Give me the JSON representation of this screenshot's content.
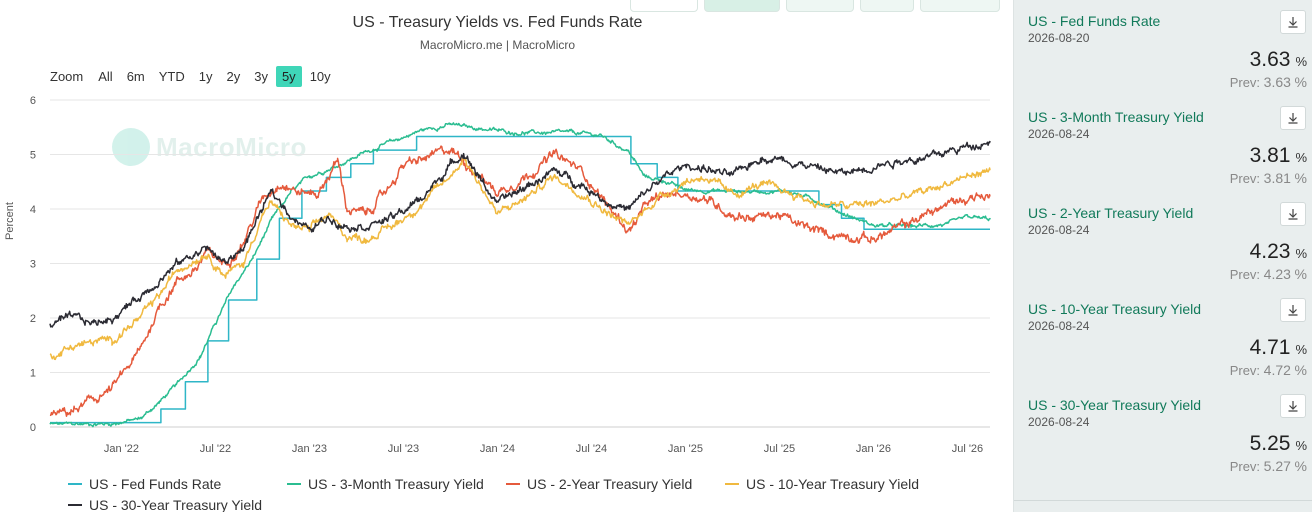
{
  "chart_data": {
    "type": "line",
    "title": "US - Treasury Yields vs. Fed Funds Rate",
    "subtitle": "MacroMicro.me | MacroMicro",
    "ylabel": "Percent",
    "xlabel": "",
    "ylim": [
      0,
      6
    ],
    "yticks": [
      0,
      1,
      2,
      3,
      4,
      5,
      6
    ],
    "xlim": [
      2021.62,
      2026.62
    ],
    "xticks": [
      {
        "label": "Jan '22",
        "x": 2022.0
      },
      {
        "label": "Jul '22",
        "x": 2022.5
      },
      {
        "label": "Jan '23",
        "x": 2023.0
      },
      {
        "label": "Jul '23",
        "x": 2023.5
      },
      {
        "label": "Jan '24",
        "x": 2024.0
      },
      {
        "label": "Jul '24",
        "x": 2024.5
      },
      {
        "label": "Jan '25",
        "x": 2025.0
      },
      {
        "label": "Jul '25",
        "x": 2025.5
      },
      {
        "label": "Jan '26",
        "x": 2026.0
      },
      {
        "label": "Jul '26",
        "x": 2026.5
      }
    ],
    "grid": true,
    "legend_position": "bottom",
    "zoom": {
      "label": "Zoom",
      "options": [
        "All",
        "6m",
        "YTD",
        "1y",
        "2y",
        "3y",
        "5y",
        "10y"
      ],
      "active": "5y"
    },
    "watermark": "MacroMicro",
    "series": [
      {
        "name": "US - Fed Funds Rate",
        "color": "#2eb6c7",
        "step": true,
        "points": [
          [
            2021.62,
            0.08
          ],
          [
            2022.21,
            0.08
          ],
          [
            2022.21,
            0.33
          ],
          [
            2022.34,
            0.33
          ],
          [
            2022.34,
            0.83
          ],
          [
            2022.46,
            0.83
          ],
          [
            2022.46,
            1.58
          ],
          [
            2022.57,
            1.58
          ],
          [
            2022.57,
            2.33
          ],
          [
            2022.72,
            2.33
          ],
          [
            2022.72,
            3.08
          ],
          [
            2022.84,
            3.08
          ],
          [
            2022.84,
            3.83
          ],
          [
            2022.96,
            3.83
          ],
          [
            2022.96,
            4.33
          ],
          [
            2023.09,
            4.33
          ],
          [
            2023.09,
            4.58
          ],
          [
            2023.22,
            4.58
          ],
          [
            2023.22,
            4.83
          ],
          [
            2023.34,
            4.83
          ],
          [
            2023.34,
            5.08
          ],
          [
            2023.57,
            5.08
          ],
          [
            2023.57,
            5.33
          ],
          [
            2024.71,
            5.33
          ],
          [
            2024.71,
            4.83
          ],
          [
            2024.85,
            4.83
          ],
          [
            2024.85,
            4.58
          ],
          [
            2024.96,
            4.58
          ],
          [
            2024.96,
            4.33
          ],
          [
            2025.71,
            4.33
          ],
          [
            2025.71,
            4.08
          ],
          [
            2025.83,
            4.08
          ],
          [
            2025.83,
            3.83
          ],
          [
            2025.95,
            3.83
          ],
          [
            2025.95,
            3.63
          ],
          [
            2026.62,
            3.63
          ]
        ]
      },
      {
        "name": "US - 3-Month Treasury Yield",
        "color": "#2bbd91",
        "noise": 0.03,
        "points": [
          [
            2021.62,
            0.05
          ],
          [
            2021.95,
            0.06
          ],
          [
            2022.1,
            0.15
          ],
          [
            2022.2,
            0.45
          ],
          [
            2022.3,
            0.8
          ],
          [
            2022.42,
            1.3
          ],
          [
            2022.5,
            1.9
          ],
          [
            2022.6,
            2.6
          ],
          [
            2022.7,
            3.1
          ],
          [
            2022.8,
            3.8
          ],
          [
            2022.9,
            4.3
          ],
          [
            2023.0,
            4.6
          ],
          [
            2023.15,
            4.8
          ],
          [
            2023.3,
            5.05
          ],
          [
            2023.45,
            5.25
          ],
          [
            2023.6,
            5.45
          ],
          [
            2023.75,
            5.55
          ],
          [
            2023.9,
            5.48
          ],
          [
            2024.1,
            5.4
          ],
          [
            2024.4,
            5.4
          ],
          [
            2024.55,
            5.35
          ],
          [
            2024.7,
            5.05
          ],
          [
            2024.78,
            4.6
          ],
          [
            2024.9,
            4.5
          ],
          [
            2025.0,
            4.35
          ],
          [
            2025.3,
            4.32
          ],
          [
            2025.55,
            4.33
          ],
          [
            2025.7,
            4.15
          ],
          [
            2025.85,
            3.9
          ],
          [
            2026.0,
            3.7
          ],
          [
            2026.2,
            3.68
          ],
          [
            2026.4,
            3.72
          ],
          [
            2026.5,
            3.85
          ],
          [
            2026.62,
            3.81
          ]
        ]
      },
      {
        "name": "US - 2-Year Treasury Yield",
        "color": "#e55a3c",
        "noise": 0.07,
        "points": [
          [
            2021.62,
            0.2
          ],
          [
            2021.75,
            0.3
          ],
          [
            2021.85,
            0.5
          ],
          [
            2021.95,
            0.7
          ],
          [
            2022.1,
            1.4
          ],
          [
            2022.2,
            2.2
          ],
          [
            2022.3,
            2.7
          ],
          [
            2022.4,
            2.9
          ],
          [
            2022.45,
            3.2
          ],
          [
            2022.55,
            3.0
          ],
          [
            2022.65,
            3.4
          ],
          [
            2022.75,
            4.2
          ],
          [
            2022.85,
            4.5
          ],
          [
            2022.95,
            4.3
          ],
          [
            2023.05,
            4.3
          ],
          [
            2023.15,
            4.9
          ],
          [
            2023.2,
            4.0
          ],
          [
            2023.3,
            3.9
          ],
          [
            2023.4,
            4.3
          ],
          [
            2023.5,
            4.8
          ],
          [
            2023.6,
            4.9
          ],
          [
            2023.75,
            5.1
          ],
          [
            2023.85,
            4.8
          ],
          [
            2024.0,
            4.3
          ],
          [
            2024.15,
            4.6
          ],
          [
            2024.3,
            5.0
          ],
          [
            2024.45,
            4.7
          ],
          [
            2024.6,
            4.0
          ],
          [
            2024.7,
            3.6
          ],
          [
            2024.8,
            4.1
          ],
          [
            2024.95,
            4.3
          ],
          [
            2025.1,
            4.2
          ],
          [
            2025.25,
            3.9
          ],
          [
            2025.35,
            3.85
          ],
          [
            2025.5,
            3.9
          ],
          [
            2025.6,
            3.7
          ],
          [
            2025.75,
            3.55
          ],
          [
            2025.9,
            3.5
          ],
          [
            2026.0,
            3.45
          ],
          [
            2026.1,
            3.6
          ],
          [
            2026.25,
            3.85
          ],
          [
            2026.4,
            4.1
          ],
          [
            2026.55,
            4.25
          ],
          [
            2026.62,
            4.23
          ]
        ]
      },
      {
        "name": "US - 10-Year Treasury Yield",
        "color": "#f0b93f",
        "noise": 0.06,
        "points": [
          [
            2021.62,
            1.3
          ],
          [
            2021.75,
            1.5
          ],
          [
            2021.85,
            1.55
          ],
          [
            2021.95,
            1.6
          ],
          [
            2022.1,
            2.0
          ],
          [
            2022.2,
            2.4
          ],
          [
            2022.3,
            2.9
          ],
          [
            2022.45,
            3.2
          ],
          [
            2022.55,
            2.8
          ],
          [
            2022.65,
            3.0
          ],
          [
            2022.75,
            3.9
          ],
          [
            2022.8,
            4.1
          ],
          [
            2022.9,
            3.7
          ],
          [
            2023.0,
            3.6
          ],
          [
            2023.1,
            3.9
          ],
          [
            2023.2,
            3.5
          ],
          [
            2023.3,
            3.45
          ],
          [
            2023.45,
            3.7
          ],
          [
            2023.6,
            4.1
          ],
          [
            2023.75,
            4.6
          ],
          [
            2023.82,
            4.95
          ],
          [
            2023.9,
            4.5
          ],
          [
            2024.0,
            3.9
          ],
          [
            2024.15,
            4.2
          ],
          [
            2024.3,
            4.6
          ],
          [
            2024.45,
            4.3
          ],
          [
            2024.6,
            3.9
          ],
          [
            2024.7,
            3.7
          ],
          [
            2024.85,
            4.2
          ],
          [
            2025.0,
            4.5
          ],
          [
            2025.1,
            4.6
          ],
          [
            2025.25,
            4.25
          ],
          [
            2025.4,
            4.45
          ],
          [
            2025.55,
            4.3
          ],
          [
            2025.7,
            4.1
          ],
          [
            2025.85,
            4.05
          ],
          [
            2026.0,
            4.1
          ],
          [
            2026.15,
            4.2
          ],
          [
            2026.3,
            4.35
          ],
          [
            2026.45,
            4.55
          ],
          [
            2026.62,
            4.71
          ]
        ]
      },
      {
        "name": "US - 30-Year Treasury Yield",
        "color": "#2b2b33",
        "noise": 0.06,
        "points": [
          [
            2021.62,
            1.9
          ],
          [
            2021.75,
            2.0
          ],
          [
            2021.85,
            1.9
          ],
          [
            2021.95,
            2.0
          ],
          [
            2022.1,
            2.4
          ],
          [
            2022.2,
            2.7
          ],
          [
            2022.3,
            3.0
          ],
          [
            2022.45,
            3.3
          ],
          [
            2022.55,
            3.0
          ],
          [
            2022.65,
            3.3
          ],
          [
            2022.75,
            4.0
          ],
          [
            2022.8,
            4.3
          ],
          [
            2022.9,
            3.9
          ],
          [
            2023.0,
            3.6
          ],
          [
            2023.1,
            3.85
          ],
          [
            2023.2,
            3.7
          ],
          [
            2023.3,
            3.7
          ],
          [
            2023.45,
            3.85
          ],
          [
            2023.6,
            4.2
          ],
          [
            2023.75,
            4.8
          ],
          [
            2023.82,
            5.05
          ],
          [
            2023.9,
            4.6
          ],
          [
            2024.0,
            4.1
          ],
          [
            2024.15,
            4.4
          ],
          [
            2024.3,
            4.7
          ],
          [
            2024.45,
            4.45
          ],
          [
            2024.6,
            4.1
          ],
          [
            2024.7,
            4.0
          ],
          [
            2024.85,
            4.5
          ],
          [
            2025.0,
            4.8
          ],
          [
            2025.1,
            4.75
          ],
          [
            2025.25,
            4.6
          ],
          [
            2025.4,
            4.95
          ],
          [
            2025.55,
            4.9
          ],
          [
            2025.7,
            4.75
          ],
          [
            2025.85,
            4.65
          ],
          [
            2026.0,
            4.8
          ],
          [
            2026.15,
            4.9
          ],
          [
            2026.3,
            4.95
          ],
          [
            2026.45,
            5.1
          ],
          [
            2026.55,
            5.2
          ],
          [
            2026.62,
            5.25
          ]
        ]
      }
    ]
  },
  "side_panel": {
    "items": [
      {
        "name": "US - Fed Funds Rate",
        "date": "2026-08-20",
        "value": "3.63",
        "unit": "%",
        "prev_label": "Prev:",
        "prev_value": "3.63",
        "prev_unit": "%"
      },
      {
        "name": "US - 3-Month Treasury Yield",
        "date": "2026-08-24",
        "value": "3.81",
        "unit": "%",
        "prev_label": "Prev:",
        "prev_value": "3.81",
        "prev_unit": "%"
      },
      {
        "name": "US - 2-Year Treasury Yield",
        "date": "2026-08-24",
        "value": "4.23",
        "unit": "%",
        "prev_label": "Prev:",
        "prev_value": "4.23",
        "prev_unit": "%"
      },
      {
        "name": "US - 10-Year Treasury Yield",
        "date": "2026-08-24",
        "value": "4.71",
        "unit": "%",
        "prev_label": "Prev:",
        "prev_value": "4.72",
        "prev_unit": "%"
      },
      {
        "name": "US - 30-Year Treasury Yield",
        "date": "2026-08-24",
        "value": "5.25",
        "unit": "%",
        "prev_label": "Prev:",
        "prev_value": "5.27",
        "prev_unit": "%"
      }
    ]
  }
}
